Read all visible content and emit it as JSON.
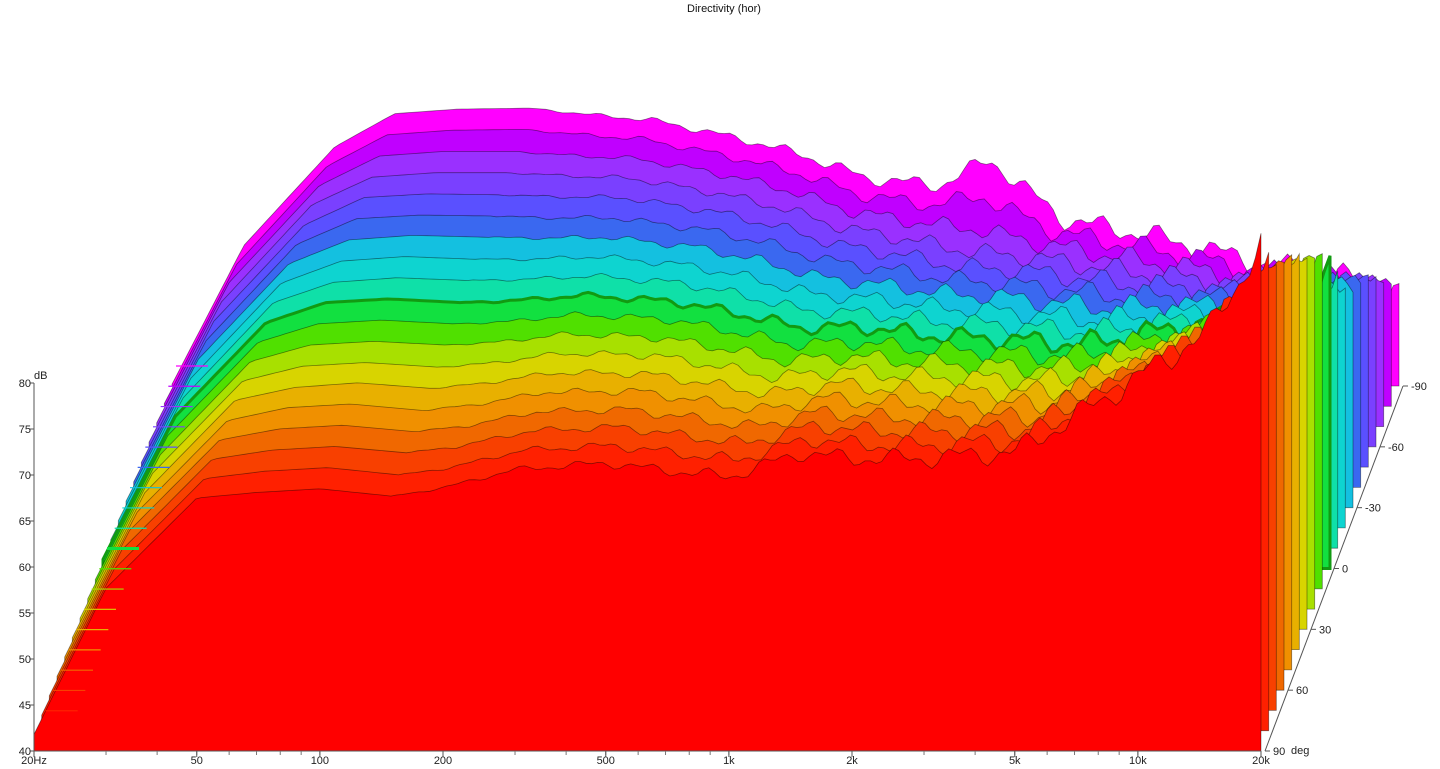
{
  "chart_data": {
    "type": "area",
    "title": "Directivity (hor)",
    "ylabel": "dB",
    "zlabel": "deg",
    "xscale": "log",
    "xlim": [
      20,
      20000
    ],
    "ylim": [
      40,
      80
    ],
    "zlim": [
      90,
      -90
    ],
    "x_ticks": [
      {
        "value": 20,
        "label": "20Hz"
      },
      {
        "value": 50,
        "label": "50"
      },
      {
        "value": 100,
        "label": "100"
      },
      {
        "value": 200,
        "label": "200"
      },
      {
        "value": 500,
        "label": "500"
      },
      {
        "value": 1000,
        "label": "1k"
      },
      {
        "value": 2000,
        "label": "2k"
      },
      {
        "value": 5000,
        "label": "5k"
      },
      {
        "value": 10000,
        "label": "10k"
      },
      {
        "value": 20000,
        "label": "20k"
      }
    ],
    "y_ticks": [
      {
        "value": 80,
        "label": "80"
      },
      {
        "value": 75,
        "label": "75"
      },
      {
        "value": 70,
        "label": "70"
      },
      {
        "value": 65,
        "label": "65"
      },
      {
        "value": 60,
        "label": "60"
      },
      {
        "value": 55,
        "label": "55"
      },
      {
        "value": 50,
        "label": "50"
      },
      {
        "value": 45,
        "label": "45"
      },
      {
        "value": 40,
        "label": "40"
      }
    ],
    "z_ticks": [
      {
        "value": -90,
        "label": "-90"
      },
      {
        "value": -60,
        "label": "-60"
      },
      {
        "value": -30,
        "label": "-30"
      },
      {
        "value": 0,
        "label": "0"
      },
      {
        "value": 30,
        "label": "30"
      },
      {
        "value": 60,
        "label": "60"
      },
      {
        "value": 90,
        "label": "90"
      }
    ],
    "highlight_angle": 0,
    "series_angles": [
      -90,
      -80,
      -70,
      -60,
      -50,
      -40,
      -30,
      -20,
      -10,
      0,
      10,
      20,
      30,
      40,
      50,
      60,
      70,
      80,
      90
    ],
    "series_colors": [
      "#ff00ff",
      "#c000ff",
      "#9a30ff",
      "#7a40ff",
      "#5a50ff",
      "#3a68f0",
      "#14c0e0",
      "#0ed4d0",
      "#0fe0a8",
      "#12e040",
      "#50e000",
      "#a8e000",
      "#d8d400",
      "#e8b000",
      "#f09000",
      "#f06800",
      "#f84000",
      "#ff2000",
      "#ff0000"
    ],
    "spectrum_freqs": [
      20,
      30,
      50,
      70,
      100,
      150,
      200,
      300,
      500,
      700,
      1000,
      1500,
      2000,
      3000,
      5000,
      7000,
      10000,
      15000,
      20000
    ],
    "spectrum_db": [
      [
        40.2,
        55.3,
        66.0,
        69.6,
        70.1,
        70.2,
        69.6,
        68.9,
        66.8,
        65.1,
        62.6,
        61.8,
        64.6,
        58.2,
        56.3,
        54.7,
        52.9,
        51.6,
        50.2
      ],
      [
        40.3,
        55.4,
        66.1,
        69.5,
        70.0,
        70.1,
        69.6,
        69.0,
        67.0,
        65.4,
        63.0,
        61.9,
        62.8,
        59.0,
        57.2,
        55.9,
        54.4,
        53.5,
        52.7
      ],
      [
        40.4,
        55.6,
        66.2,
        69.4,
        69.9,
        69.9,
        69.5,
        69.1,
        67.3,
        65.7,
        63.4,
        62.1,
        61.5,
        59.8,
        58.1,
        57.1,
        56.0,
        55.4,
        55.2
      ],
      [
        40.5,
        55.7,
        66.3,
        69.3,
        69.8,
        69.8,
        69.5,
        69.2,
        67.5,
        66.0,
        63.8,
        62.4,
        61.3,
        60.5,
        59.0,
        58.3,
        57.5,
        57.3,
        57.7
      ],
      [
        40.5,
        55.8,
        66.3,
        69.3,
        69.7,
        69.6,
        69.4,
        69.3,
        67.8,
        66.3,
        64.2,
        62.9,
        61.8,
        61.3,
        59.9,
        59.5,
        59.0,
        59.2,
        60.2
      ],
      [
        40.6,
        55.9,
        66.4,
        69.2,
        69.6,
        69.5,
        69.3,
        69.3,
        68.0,
        66.6,
        64.6,
        63.5,
        62.6,
        62.0,
        60.8,
        60.7,
        60.6,
        61.1,
        62.7
      ],
      [
        40.7,
        56.1,
        66.5,
        69.1,
        69.6,
        69.4,
        69.3,
        69.4,
        68.3,
        66.9,
        65.0,
        64.1,
        63.3,
        62.8,
        61.7,
        61.9,
        62.1,
        63.0,
        65.2
      ],
      [
        40.8,
        56.2,
        66.6,
        69.0,
        69.5,
        69.2,
        69.2,
        69.5,
        68.5,
        67.2,
        65.4,
        64.8,
        64.0,
        63.5,
        62.6,
        63.1,
        63.6,
        64.9,
        67.7
      ],
      [
        40.9,
        56.3,
        66.7,
        68.9,
        69.4,
        69.1,
        69.2,
        69.6,
        68.8,
        67.5,
        65.8,
        65.5,
        64.7,
        64.3,
        63.5,
        64.3,
        65.2,
        66.8,
        70.2
      ],
      [
        41.0,
        56.5,
        66.7,
        68.9,
        69.3,
        68.9,
        69.1,
        69.7,
        69.0,
        67.8,
        66.2,
        66.2,
        65.4,
        65.0,
        64.4,
        65.5,
        66.7,
        68.7,
        72.7
      ],
      [
        41.0,
        56.6,
        66.8,
        68.8,
        69.2,
        68.8,
        69.0,
        69.8,
        69.3,
        68.1,
        66.6,
        66.8,
        66.1,
        65.8,
        65.3,
        66.7,
        68.3,
        70.6,
        75.2
      ],
      [
        41.1,
        56.7,
        66.9,
        68.7,
        69.1,
        68.7,
        69.0,
        69.9,
        69.5,
        68.4,
        67.0,
        67.5,
        66.9,
        66.5,
        66.2,
        67.9,
        69.8,
        72.5,
        77.7
      ],
      [
        41.2,
        56.9,
        67.0,
        68.6,
        69.0,
        68.5,
        68.9,
        70.0,
        69.8,
        68.7,
        67.4,
        68.2,
        67.6,
        67.3,
        67.1,
        69.1,
        71.3,
        74.4,
        80.2
      ],
      [
        41.3,
        57.0,
        67.1,
        68.5,
        69.0,
        68.4,
        68.9,
        70.1,
        70.0,
        69.0,
        67.8,
        68.9,
        68.3,
        68.0,
        68.0,
        70.3,
        72.9,
        76.3,
        82.7
      ],
      [
        41.4,
        57.1,
        67.1,
        68.5,
        68.9,
        68.2,
        68.8,
        70.2,
        70.3,
        69.3,
        68.2,
        69.6,
        69.0,
        68.8,
        68.9,
        71.5,
        74.4,
        78.2,
        85.2
      ],
      [
        41.5,
        57.3,
        67.2,
        68.4,
        68.8,
        68.1,
        68.7,
        70.3,
        70.5,
        69.6,
        68.6,
        70.3,
        69.7,
        69.5,
        69.8,
        72.7,
        76.0,
        80.1,
        87.7
      ],
      [
        41.6,
        57.4,
        67.3,
        68.3,
        68.7,
        68.0,
        68.7,
        70.4,
        70.8,
        69.9,
        69.0,
        71.0,
        70.4,
        70.3,
        70.7,
        73.9,
        77.5,
        82.0,
        90.2
      ],
      [
        41.7,
        57.5,
        67.4,
        68.2,
        68.6,
        67.8,
        68.6,
        70.5,
        71.0,
        70.2,
        69.4,
        71.7,
        71.1,
        71.0,
        71.6,
        75.1,
        79.0,
        83.9,
        92.7
      ],
      [
        41.8,
        57.7,
        67.5,
        68.1,
        68.5,
        67.7,
        68.6,
        70.6,
        71.3,
        70.5,
        69.8,
        72.4,
        71.8,
        71.8,
        72.5,
        76.3,
        80.6,
        85.8,
        95.2
      ]
    ]
  }
}
